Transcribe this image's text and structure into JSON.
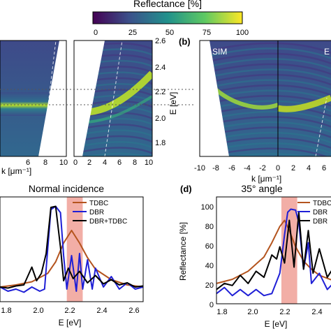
{
  "colorbar": {
    "title": "Reflectance [%]",
    "ticks": [
      "0",
      "25",
      "50",
      "75",
      "100"
    ]
  },
  "panels": {
    "a": {
      "left": {
        "xlabel_k": "k",
        "xlabel_unit": "[μm⁻¹]",
        "xticks": [
          "6",
          "8",
          "10"
        ]
      },
      "right": {
        "xticks": [
          "0",
          "2",
          "4",
          "6",
          "8",
          "10"
        ]
      },
      "ylabel_e": "E",
      "ylabel_unit": "[eV]",
      "yticks": [
        "2.6",
        "2.4",
        "2.2",
        "2.0",
        "1.8"
      ]
    },
    "b": {
      "letter": "(b)",
      "label_sim": "SIM",
      "label_exp_partial": "E",
      "xlabel_k": "k",
      "xlabel_unit": "[μm⁻¹]",
      "xticks": [
        "-10",
        "-8",
        "-6",
        "-4",
        "-2",
        "0",
        "2",
        "4",
        "6"
      ]
    },
    "c": {
      "title": "Normal incidence",
      "xlabel": "E [eV]",
      "xticks": [
        "1.8",
        "2.0",
        "2.2",
        "2.4",
        "2.6"
      ],
      "legend": [
        "TDBC",
        "DBR",
        "DBR+TDBC"
      ]
    },
    "d": {
      "letter": "(d)",
      "title": "35° angle",
      "xlabel": "E [eV]",
      "ylabel": "Reflectance [%]",
      "xticks": [
        "1.8",
        "2.0",
        "2.2",
        "2.4"
      ],
      "yticks": [
        "0",
        "20",
        "40",
        "60",
        "80",
        "100"
      ],
      "legend": [
        "TDBC",
        "DBR",
        "DBR"
      ]
    }
  },
  "colors": {
    "tdbc": "#b4541e",
    "dbr": "#1f1fd6",
    "dbr_tdbc": "#000000",
    "highlight": "#f0a097"
  },
  "chart_data": [
    {
      "type": "line",
      "title": "Normal incidence",
      "xlabel": "E [eV]",
      "xlim": [
        1.7,
        2.6
      ],
      "ylim": [
        0,
        100
      ],
      "highlight_band": [
        2.12,
        2.22
      ],
      "series": [
        {
          "name": "TDBC",
          "x": [
            1.7,
            1.8,
            1.9,
            2.0,
            2.05,
            2.1,
            2.15,
            2.2,
            2.25,
            2.3,
            2.4,
            2.5,
            2.6
          ],
          "y": [
            14,
            16,
            19,
            27,
            38,
            56,
            68,
            56,
            42,
            31,
            21,
            16,
            14
          ]
        },
        {
          "name": "DBR",
          "x": [
            1.7,
            1.75,
            1.8,
            1.85,
            1.9,
            1.95,
            1.98,
            2.0,
            2.02,
            2.05,
            2.08,
            2.1,
            2.12,
            2.15,
            2.18,
            2.2,
            2.22,
            2.25,
            2.28,
            2.3,
            2.35,
            2.4,
            2.45,
            2.5,
            2.55,
            2.6
          ],
          "y": [
            14,
            10,
            12,
            9,
            14,
            10,
            12,
            50,
            88,
            91,
            85,
            44,
            12,
            44,
            10,
            46,
            12,
            40,
            12,
            32,
            14,
            24,
            12,
            18,
            12,
            14
          ]
        },
        {
          "name": "DBR+TDBC",
          "x": [
            1.7,
            1.75,
            1.8,
            1.85,
            1.9,
            1.93,
            1.96,
            1.99,
            2.02,
            2.05,
            2.08,
            2.1,
            2.13,
            2.16,
            2.2,
            2.25,
            2.3,
            2.35,
            2.4,
            2.45,
            2.5,
            2.55,
            2.6
          ],
          "y": [
            14,
            13,
            15,
            16,
            33,
            20,
            27,
            46,
            90,
            91,
            52,
            20,
            32,
            22,
            29,
            18,
            25,
            17,
            21,
            16,
            18,
            14,
            15
          ]
        }
      ]
    },
    {
      "type": "line",
      "title": "35° angle",
      "xlabel": "E [eV]",
      "ylabel": "Reflectance [%]",
      "xlim": [
        1.7,
        2.45
      ],
      "ylim": [
        0,
        105
      ],
      "highlight_band": [
        2.11,
        2.21
      ],
      "series": [
        {
          "name": "TDBC",
          "x": [
            1.7,
            1.8,
            1.9,
            2.0,
            2.05,
            2.1,
            2.13,
            2.16,
            2.2,
            2.25,
            2.3,
            2.35,
            2.45
          ],
          "y": [
            20,
            24,
            32,
            46,
            60,
            76,
            82,
            72,
            56,
            42,
            34,
            28,
            22
          ]
        },
        {
          "name": "DBR",
          "x": [
            1.7,
            1.75,
            1.8,
            1.85,
            1.9,
            1.95,
            2.0,
            2.05,
            2.1,
            2.13,
            2.15,
            2.17,
            2.2,
            2.22,
            2.25,
            2.28,
            2.3,
            2.35,
            2.4,
            2.45
          ],
          "y": [
            10,
            16,
            8,
            14,
            8,
            14,
            8,
            10,
            30,
            68,
            90,
            93,
            92,
            80,
            34,
            60,
            20,
            30,
            14,
            22
          ]
        },
        {
          "name": "DBR",
          "x": [
            1.7,
            1.75,
            1.8,
            1.85,
            1.9,
            1.95,
            2.0,
            2.05,
            2.08,
            2.1,
            2.13,
            2.16,
            2.19,
            2.22,
            2.25,
            2.28,
            2.31,
            2.35,
            2.4,
            2.45
          ],
          "y": [
            14,
            20,
            18,
            28,
            20,
            32,
            26,
            48,
            44,
            56,
            40,
            82,
            36,
            90,
            34,
            72,
            30,
            54,
            26,
            38
          ]
        }
      ]
    }
  ]
}
